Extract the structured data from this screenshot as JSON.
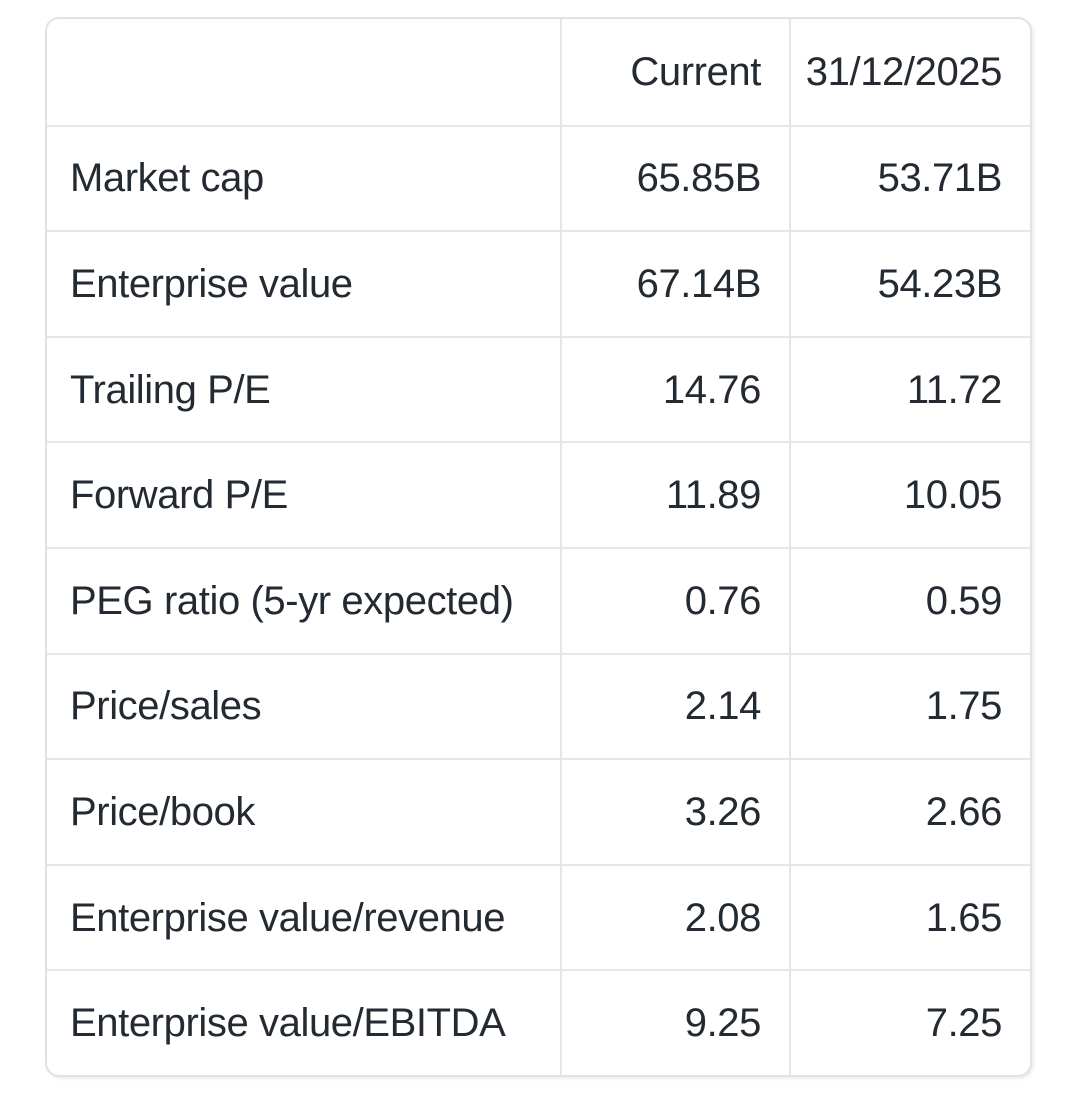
{
  "table": {
    "columns": [
      "",
      "Current",
      "31/12/2025"
    ],
    "rows": [
      {
        "label": "Market cap",
        "current": "65.85B",
        "projected": "53.71B"
      },
      {
        "label": "Enterprise value",
        "current": "67.14B",
        "projected": "54.23B"
      },
      {
        "label": "Trailing P/E",
        "current": "14.76",
        "projected": "11.72"
      },
      {
        "label": "Forward P/E",
        "current": "11.89",
        "projected": "10.05"
      },
      {
        "label": "PEG ratio (5-yr expected)",
        "current": "0.76",
        "projected": "0.59"
      },
      {
        "label": "Price/sales",
        "current": "2.14",
        "projected": "1.75"
      },
      {
        "label": "Price/book",
        "current": "3.26",
        "projected": "2.66"
      },
      {
        "label": "Enterprise value/revenue",
        "current": "2.08",
        "projected": "1.65"
      },
      {
        "label": "Enterprise value/EBITDA",
        "current": "9.25",
        "projected": "7.25"
      }
    ]
  },
  "colors": {
    "background": "#ffffff",
    "border": "#e4e6e9",
    "text": "#232a31"
  }
}
